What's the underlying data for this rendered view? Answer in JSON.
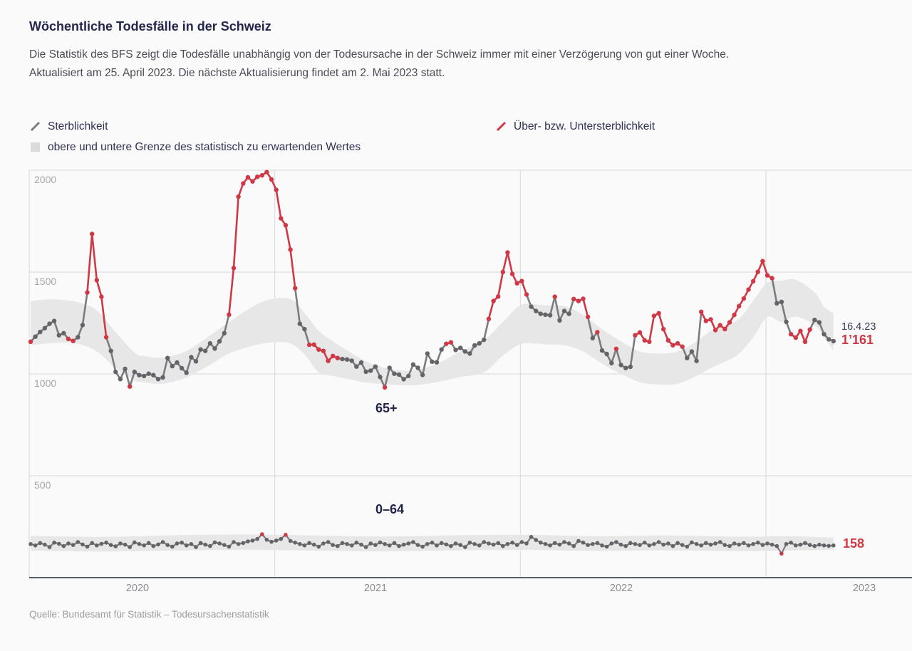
{
  "header": {
    "title": "Wöchentliche Todesfälle in der Schweiz",
    "subtitle_line1": "Die Statistik des BFS zeigt die Todesfälle unabhängig von der Todesursache in der Schweiz immer mit einer Verzögerung von gut einer Woche.",
    "subtitle_line2": "Aktualisiert am 25. April 2023. Die nächste Aktualisierung findet am 2. Mai 2023 statt."
  },
  "legend": {
    "mortality": "Sterblichkeit",
    "excess": "Über- bzw. Untersterblichkeit",
    "band": "obere und untere Grenze des statistisch zu erwartenden Wertes"
  },
  "source": "Quelle: Bundesamt für Statistik – Todesursachenstatistik",
  "colors": {
    "red": "#cf3845",
    "line_gray": "#7b7b80",
    "dot_gray": "#646468",
    "band_gray": "#e7e7e8",
    "swatch_gray": "#dadada",
    "grid_gray": "#d8d8da",
    "axis_dark": "#585d6e",
    "navy": "#23264c"
  },
  "chart_data": {
    "type": "line",
    "title": "Wöchentliche Todesfälle in der Schweiz",
    "x_ticks": [
      "2020",
      "2021",
      "2022",
      "2023"
    ],
    "y_ticks": [
      "2000",
      "1500",
      "1000",
      "500"
    ],
    "ylim": [
      0,
      2100
    ],
    "weeks_per_year": 52,
    "grid": true,
    "legend_position": "top",
    "annotations": {
      "date": "16.4.23",
      "value_65plus": "1’161",
      "value_0to64": "158"
    },
    "series": [
      {
        "name": "65plus",
        "label": "65+",
        "values": [
          1158,
          1183,
          1206,
          1225,
          1246,
          1260,
          1190,
          1200,
          1172,
          1162,
          1180,
          1240,
          1400,
          1687,
          1460,
          1379,
          1180,
          1113,
          1010,
          975,
          1025,
          938,
          1010,
          994,
          990,
          1001,
          994,
          975,
          983,
          1078,
          1038,
          1056,
          1028,
          1006,
          1082,
          1062,
          1120,
          1113,
          1150,
          1125,
          1160,
          1200,
          1291,
          1520,
          1870,
          1935,
          1965,
          1945,
          1968,
          1975,
          1991,
          1955,
          1904,
          1764,
          1730,
          1610,
          1421,
          1246,
          1220,
          1143,
          1144,
          1120,
          1113,
          1064,
          1088,
          1078,
          1073,
          1071,
          1065,
          1036,
          1056,
          1011,
          1016,
          1036,
          985,
          934,
          1030,
          1001,
          997,
          974,
          990,
          1046,
          1030,
          995,
          1100,
          1060,
          1057,
          1120,
          1148,
          1155,
          1118,
          1128,
          1110,
          1100,
          1140,
          1150,
          1168,
          1270,
          1358,
          1380,
          1500,
          1596,
          1491,
          1445,
          1456,
          1390,
          1330,
          1309,
          1295,
          1291,
          1288,
          1379,
          1263,
          1309,
          1295,
          1368,
          1358,
          1369,
          1280,
          1176,
          1205,
          1115,
          1098,
          1053,
          1123,
          1044,
          1029,
          1035,
          1190,
          1204,
          1165,
          1158,
          1285,
          1298,
          1220,
          1165,
          1141,
          1150,
          1134,
          1078,
          1110,
          1064,
          1305,
          1260,
          1268,
          1215,
          1239,
          1220,
          1253,
          1290,
          1333,
          1370,
          1414,
          1455,
          1501,
          1554,
          1484,
          1470,
          1347,
          1354,
          1256,
          1195,
          1178,
          1211,
          1158,
          1218,
          1265,
          1253,
          1195,
          1170,
          1161
        ],
        "excess_indices": [
          0,
          8,
          9,
          12,
          13,
          14,
          15,
          16,
          21,
          42,
          43,
          44,
          45,
          46,
          47,
          48,
          49,
          50,
          51,
          52,
          53,
          54,
          55,
          56,
          59,
          60,
          61,
          62,
          63,
          64,
          65,
          75,
          88,
          89,
          97,
          98,
          99,
          100,
          101,
          102,
          103,
          104,
          105,
          111,
          115,
          116,
          117,
          118,
          120,
          124,
          128,
          129,
          130,
          131,
          132,
          133,
          134,
          135,
          136,
          137,
          138,
          142,
          143,
          144,
          145,
          146,
          147,
          148,
          149,
          150,
          151,
          152,
          153,
          154,
          155,
          156,
          157,
          161,
          162,
          163,
          164,
          165
        ],
        "band": [
          [
            0,
            1141,
            1358
          ],
          [
            5,
            1152,
            1366
          ],
          [
            10,
            1148,
            1352
          ],
          [
            14,
            1110,
            1312
          ],
          [
            18,
            1030,
            1205
          ],
          [
            22,
            968,
            1105
          ],
          [
            24,
            959,
            1088
          ],
          [
            28,
            952,
            1080
          ],
          [
            33,
            983,
            1113
          ],
          [
            38,
            1045,
            1190
          ],
          [
            42,
            1100,
            1255
          ],
          [
            47,
            1138,
            1330
          ],
          [
            51,
            1155,
            1368
          ],
          [
            55,
            1150,
            1368
          ],
          [
            58,
            1095,
            1300
          ],
          [
            61,
            1008,
            1212
          ],
          [
            64,
            990,
            1160
          ],
          [
            67,
            976,
            1116
          ],
          [
            71,
            958,
            1062
          ],
          [
            76,
            948,
            1025
          ],
          [
            81,
            944,
            1018
          ],
          [
            86,
            960,
            1050
          ],
          [
            91,
            985,
            1110
          ],
          [
            96,
            1008,
            1165
          ],
          [
            100,
            1090,
            1255
          ],
          [
            104,
            1148,
            1340
          ],
          [
            109,
            1145,
            1336
          ],
          [
            113,
            1141,
            1333
          ],
          [
            117,
            1110,
            1290
          ],
          [
            121,
            1050,
            1220
          ],
          [
            125,
            1000,
            1160
          ],
          [
            129,
            960,
            1110
          ],
          [
            133,
            948,
            1100
          ],
          [
            137,
            952,
            1110
          ],
          [
            141,
            990,
            1160
          ],
          [
            144,
            1029,
            1211
          ],
          [
            147,
            1060,
            1240
          ],
          [
            150,
            1099,
            1270
          ],
          [
            153,
            1180,
            1360
          ],
          [
            156,
            1280,
            1448
          ],
          [
            159,
            1255,
            1458
          ],
          [
            162,
            1281,
            1462
          ],
          [
            166,
            1240,
            1400
          ],
          [
            168,
            1180,
            1330
          ],
          [
            170,
            1116,
            1298
          ]
        ]
      },
      {
        "name": "0to64",
        "label": "0–64",
        "values": [
          165,
          158,
          170,
          162,
          150,
          172,
          166,
          155,
          168,
          160,
          175,
          163,
          152,
          170,
          158,
          166,
          172,
          160,
          154,
          168,
          162,
          150,
          173,
          165,
          158,
          170,
          155,
          163,
          175,
          160,
          152,
          168,
          172,
          158,
          165,
          150,
          170,
          162,
          155,
          173,
          168,
          160,
          152,
          175,
          165,
          170,
          178,
          182,
          190,
          213,
          186,
          176,
          182,
          190,
          210,
          180,
          172,
          165,
          158,
          170,
          162,
          152,
          168,
          175,
          160,
          155,
          170,
          165,
          158,
          172,
          162,
          150,
          168,
          160,
          173,
          165,
          158,
          170,
          155,
          162,
          168,
          175,
          160,
          152,
          165,
          172,
          158,
          170,
          163,
          155,
          168,
          160,
          150,
          172,
          165,
          158,
          175,
          168,
          162,
          170,
          155,
          165,
          172,
          160,
          175,
          168,
          200,
          185,
          172,
          165,
          158,
          170,
          162,
          175,
          168,
          155,
          180,
          172,
          160,
          165,
          170,
          158,
          152,
          168,
          175,
          162,
          155,
          170,
          165,
          160,
          172,
          158,
          165,
          175,
          162,
          168,
          155,
          170,
          160,
          152,
          173,
          165,
          158,
          170,
          162,
          168,
          175,
          160,
          155,
          168,
          162,
          170,
          158,
          165,
          172,
          160,
          168,
          162,
          155,
          118,
          165,
          172,
          158,
          162,
          170,
          160,
          155,
          162,
          158,
          156,
          158
        ],
        "excess_indices": [
          49,
          54,
          159
        ],
        "band": [
          [
            0,
            132,
            205
          ],
          [
            15,
            128,
            200
          ],
          [
            30,
            133,
            208
          ],
          [
            45,
            136,
            212
          ],
          [
            60,
            133,
            207
          ],
          [
            75,
            129,
            202
          ],
          [
            90,
            134,
            208
          ],
          [
            105,
            136,
            210
          ],
          [
            120,
            131,
            204
          ],
          [
            135,
            134,
            207
          ],
          [
            150,
            130,
            201
          ],
          [
            160,
            133,
            204
          ],
          [
            166,
            135,
            200
          ],
          [
            170,
            137,
            196
          ]
        ]
      }
    ]
  }
}
